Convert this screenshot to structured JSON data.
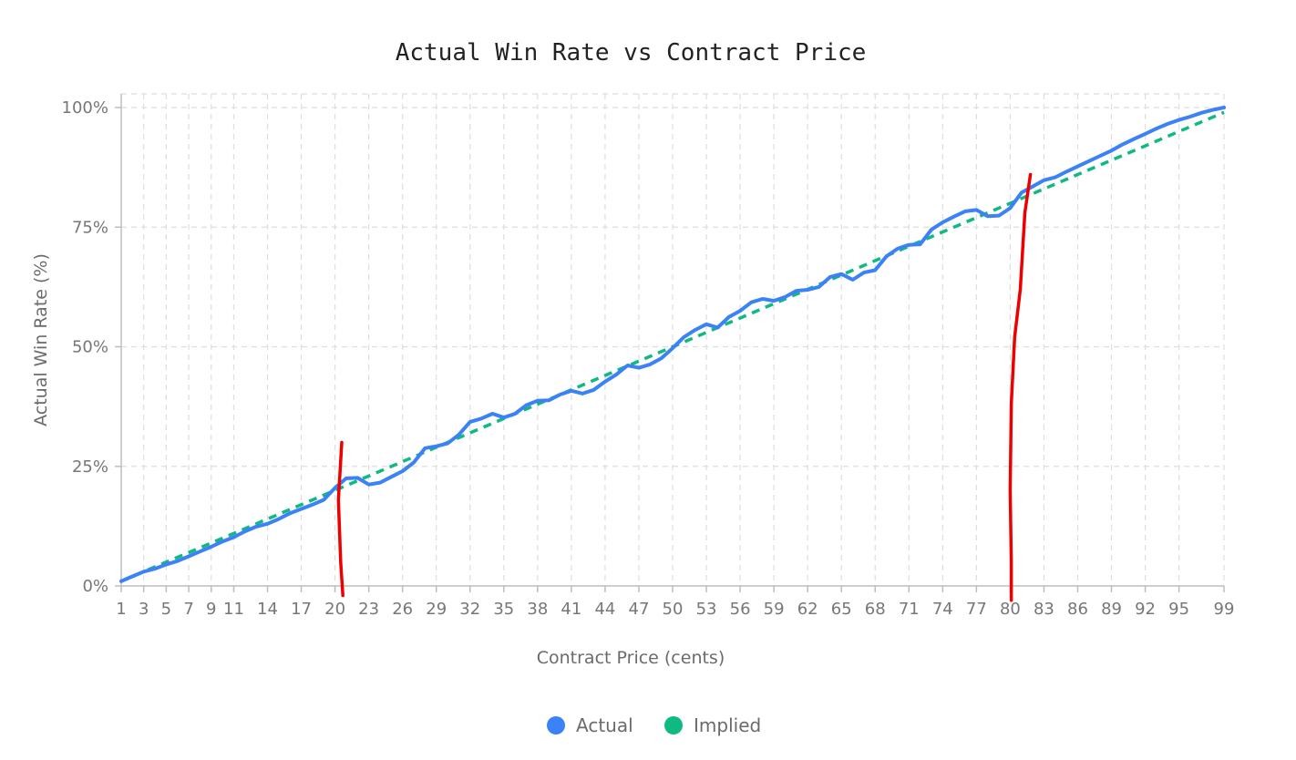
{
  "chart_data": {
    "type": "line",
    "title": "Actual Win Rate vs Contract Price",
    "xlabel": "Contract Price (cents)",
    "ylabel": "Actual Win Rate (%)",
    "xlim": [
      1,
      99
    ],
    "ylim": [
      0,
      100
    ],
    "x_ticks": [
      1,
      3,
      5,
      7,
      9,
      11,
      14,
      17,
      20,
      23,
      26,
      29,
      32,
      35,
      38,
      41,
      44,
      47,
      50,
      53,
      56,
      59,
      62,
      65,
      68,
      71,
      74,
      77,
      80,
      83,
      86,
      89,
      92,
      95,
      99
    ],
    "y_ticks": [
      {
        "value": 0,
        "label": "0%"
      },
      {
        "value": 25,
        "label": "25%"
      },
      {
        "value": 50,
        "label": "50%"
      },
      {
        "value": 75,
        "label": "75%"
      },
      {
        "value": 100,
        "label": "100%"
      }
    ],
    "grid": true,
    "legend_position": "bottom-center",
    "series": [
      {
        "name": "Actual",
        "color": "#3b82f6",
        "style": "solid",
        "x": [
          1,
          2,
          3,
          4,
          5,
          6,
          7,
          8,
          9,
          10,
          11,
          12,
          13,
          14,
          15,
          16,
          17,
          18,
          19,
          20,
          21,
          22,
          23,
          24,
          25,
          26,
          27,
          28,
          29,
          30,
          31,
          32,
          33,
          34,
          35,
          36,
          37,
          38,
          39,
          40,
          41,
          42,
          43,
          44,
          45,
          46,
          47,
          48,
          49,
          50,
          51,
          52,
          53,
          54,
          55,
          56,
          57,
          58,
          59,
          60,
          61,
          62,
          63,
          64,
          65,
          66,
          67,
          68,
          69,
          70,
          71,
          72,
          73,
          74,
          75,
          76,
          77,
          78,
          79,
          80,
          81,
          82,
          83,
          84,
          85,
          86,
          87,
          88,
          89,
          90,
          91,
          92,
          93,
          94,
          95,
          96,
          97,
          98,
          99
        ],
        "values": [
          1,
          2,
          3,
          3.6,
          4.5,
          5.2,
          6.2,
          7.2,
          8.2,
          9.3,
          10.2,
          11.4,
          12.4,
          13.0,
          14.0,
          15.2,
          16.1,
          17.0,
          18.0,
          20.5,
          22.5,
          22.6,
          21.2,
          21.6,
          22.8,
          24.0,
          25.8,
          28.8,
          29.2,
          29.8,
          31.6,
          34.3,
          35.0,
          36.0,
          35.2,
          36.0,
          37.8,
          38.7,
          38.8,
          40.0,
          40.8,
          40.2,
          41.0,
          42.7,
          44.2,
          46.1,
          45.6,
          46.3,
          47.6,
          49.7,
          52.0,
          53.5,
          54.7,
          54.0,
          56.2,
          57.5,
          59.3,
          60.0,
          59.6,
          60.4,
          61.7,
          61.9,
          62.5,
          64.6,
          65.2,
          64.0,
          65.5,
          66.0,
          68.9,
          70.5,
          71.3,
          71.4,
          74.5,
          76.0,
          77.2,
          78.3,
          78.6,
          77.3,
          77.4,
          79.0,
          82.2,
          83.5,
          84.8,
          85.4,
          86.6,
          87.7,
          88.8,
          89.9,
          91.0,
          92.3,
          93.4,
          94.5,
          95.6,
          96.6,
          97.4,
          98.1,
          98.9,
          99.5,
          100
        ]
      },
      {
        "name": "Implied",
        "color": "#10b981",
        "style": "dashed",
        "x": [
          1,
          99
        ],
        "values": [
          1,
          99
        ]
      }
    ],
    "annotations": [
      {
        "type": "freehand-vertical-line",
        "color": "#ee0000",
        "x": [
          20.6,
          20.3,
          20.5,
          20.7
        ],
        "y": [
          30,
          18,
          5,
          -2
        ]
      },
      {
        "type": "freehand-vertical-line",
        "color": "#ee0000",
        "x": [
          81.8,
          81.3,
          80.9,
          80.4,
          80.1,
          80.0,
          80.1,
          80.1
        ],
        "y": [
          86,
          78,
          62,
          52,
          38,
          20,
          5,
          -3
        ]
      }
    ]
  }
}
